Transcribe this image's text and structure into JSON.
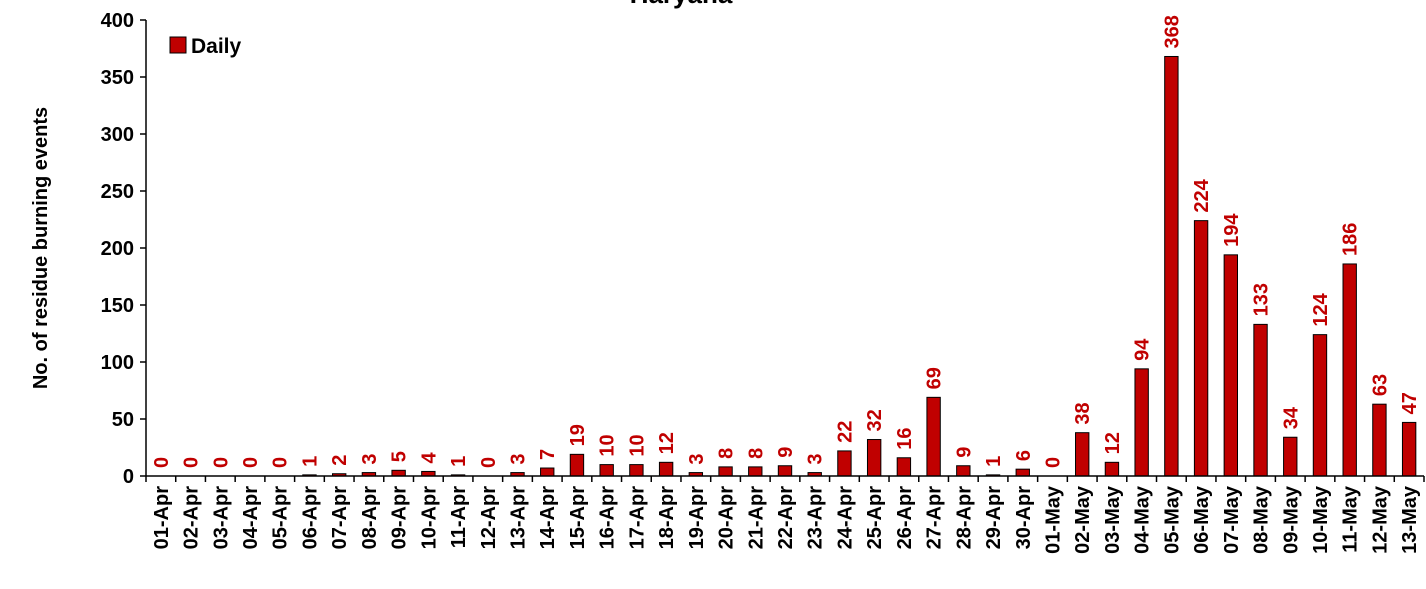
{
  "chart_data": {
    "type": "bar",
    "title": "Haryana",
    "ylabel": "No. of residue burning events",
    "xlabel": "",
    "ylim": [
      0,
      400
    ],
    "yticks": [
      0,
      50,
      100,
      150,
      200,
      250,
      300,
      350,
      400
    ],
    "legend_position": "top-left",
    "grid": false,
    "categories": [
      "01-Apr",
      "02-Apr",
      "03-Apr",
      "04-Apr",
      "05-Apr",
      "06-Apr",
      "07-Apr",
      "08-Apr",
      "09-Apr",
      "10-Apr",
      "11-Apr",
      "12-Apr",
      "13-Apr",
      "14-Apr",
      "15-Apr",
      "16-Apr",
      "17-Apr",
      "18-Apr",
      "19-Apr",
      "20-Apr",
      "21-Apr",
      "22-Apr",
      "23-Apr",
      "24-Apr",
      "25-Apr",
      "26-Apr",
      "27-Apr",
      "28-Apr",
      "29-Apr",
      "30-Apr",
      "01-May",
      "02-May",
      "03-May",
      "04-May",
      "05-May",
      "06-May",
      "07-May",
      "08-May",
      "09-May",
      "10-May",
      "11-May",
      "12-May",
      "13-May"
    ],
    "series": [
      {
        "name": "Daily",
        "color": "#C00000",
        "values": [
          0,
          0,
          0,
          0,
          0,
          1,
          2,
          3,
          5,
          4,
          1,
          0,
          3,
          7,
          19,
          10,
          10,
          12,
          3,
          8,
          8,
          9,
          3,
          22,
          32,
          16,
          69,
          9,
          1,
          6,
          0,
          38,
          12,
          94,
          368,
          224,
          194,
          133,
          34,
          124,
          186,
          63,
          47
        ]
      }
    ]
  }
}
